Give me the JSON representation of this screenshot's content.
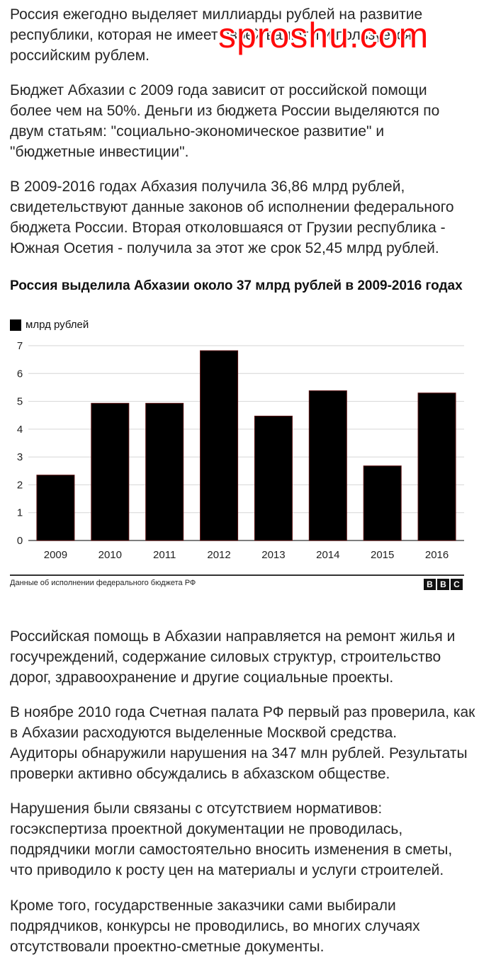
{
  "article": {
    "p1": "Россия ежегодно выделяет миллиарды рублей на развитие\nреспублики, которая не имеет своей валюты и пользуется\nроссийским рублем.",
    "p2": "Бюджет Абхазии с 2009 года зависит от российской помощи\nболее чем на 50%. Деньги из бюджета России выделяются по\nдвум статьям: \"социально-экономическое развитие\" и\n\"бюджетные инвестиции\".",
    "p3": "В 2009-2016 годах Абхазия получила 36,86 млрд рублей,\nсвидетельствуют данные законов об исполнении федерального\nбюджета России. Вторая отколовшаяся от Грузии республика -\nЮжная Осетия - получила за этот же срок 52,45 млрд рублей.",
    "p4": "Российская помощь в Абхазии направляется на ремонт жилья и\nгосучреждений, содержание силовых структур, строительство\nдорог, здравоохранение и другие социальные проекты.",
    "p5": "В ноябре 2010 года Счетная палата РФ первый раз проверила, как\nв Абхазии расходуются выделенные Москвой средства.\nАудиторы обнаружили нарушения на 347 млн рублей. Результаты\nпроверки активно обсуждались в абхазском обществе.",
    "p6": "Нарушения были связаны с отсутствием нормативов:\nгосэкспертиза проектной документации не проводилась,\nподрядчики могли самостоятельно вносить изменения в сметы,\nчто приводило к росту цен на материалы и услуги строителей.",
    "p7": "Кроме того, государственные заказчики сами выбирали\nподрядчиков, конкурсы не проводились, во многих случаях\nотсутствовали проектно-сметные документы."
  },
  "watermark": "sproshu.com",
  "chart_data": {
    "type": "bar",
    "title": "Россия выделила Абхазии около 37 млрд рублей в 2009-2016 годах",
    "categories": [
      "2009",
      "2010",
      "2011",
      "2012",
      "2013",
      "2014",
      "2015",
      "2016"
    ],
    "series": [
      {
        "name": "млрд рублей",
        "values": [
          2.35,
          4.93,
          4.93,
          6.82,
          4.47,
          5.38,
          2.68,
          5.3
        ]
      }
    ],
    "yticks": [
      "0",
      "1",
      "2",
      "3",
      "4",
      "5",
      "6",
      "7"
    ],
    "ylim": [
      0,
      7
    ],
    "grid": true,
    "legend": "top-left",
    "bar_color": "#000000",
    "source": "Данные об исполнении федерального бюджета РФ",
    "logo": [
      "B",
      "B",
      "C"
    ]
  }
}
